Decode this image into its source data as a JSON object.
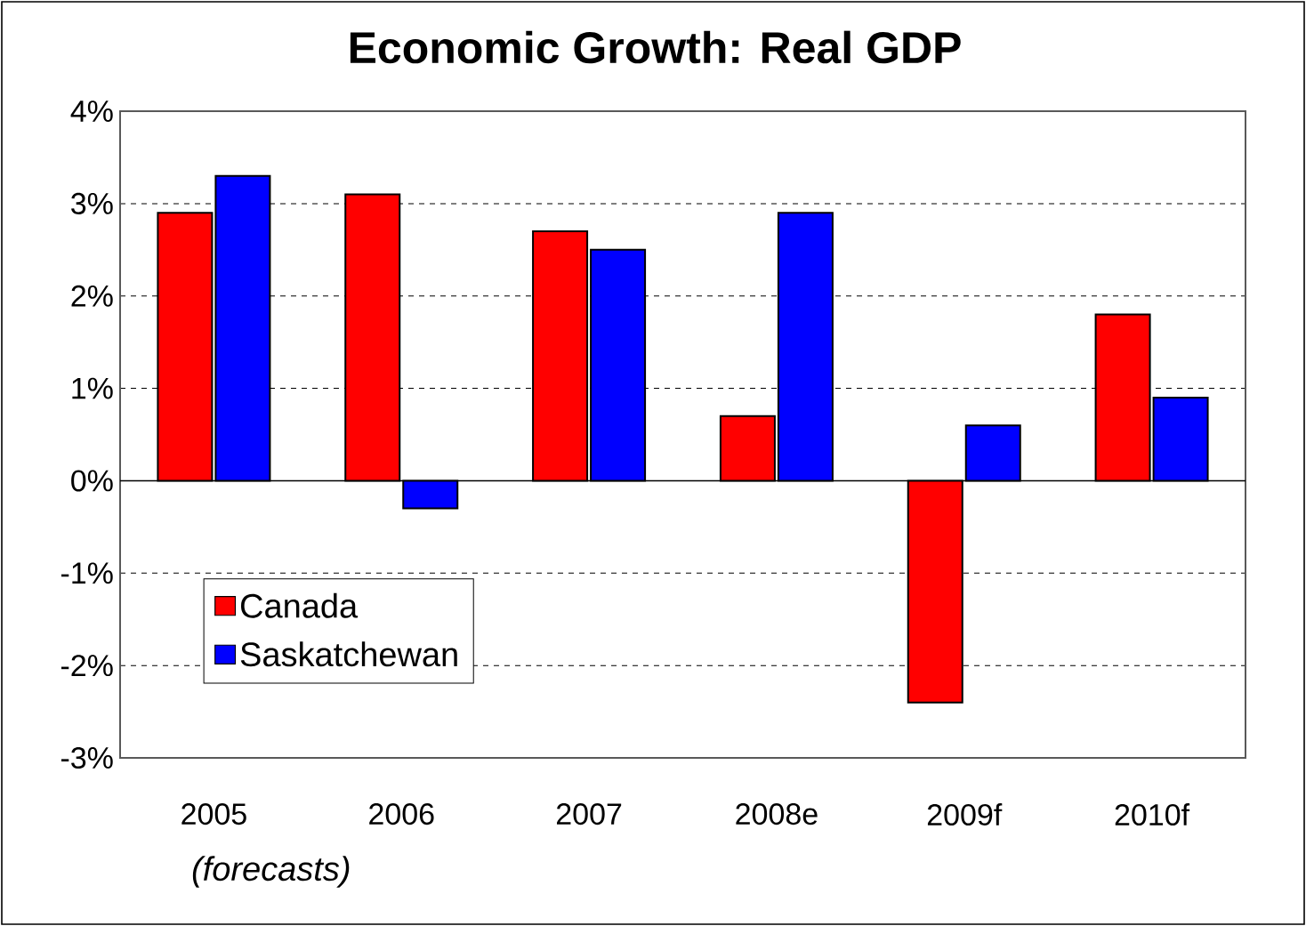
{
  "chart_data": {
    "type": "bar",
    "title": "Economic Growth: Real GDP",
    "categories": [
      "2005",
      "2006",
      "2007",
      "2008e",
      "2009f",
      "2010f"
    ],
    "series": [
      {
        "name": "Canada",
        "color": "#ff0000",
        "values": [
          2.9,
          3.1,
          2.7,
          0.7,
          -2.4,
          1.8
        ]
      },
      {
        "name": "Saskatchewan",
        "color": "#0000ff",
        "values": [
          3.3,
          -0.3,
          2.5,
          2.9,
          0.6,
          0.9
        ]
      }
    ],
    "ylim": [
      -3,
      4
    ],
    "yticks": [
      {
        "value": -3,
        "label": "-3%"
      },
      {
        "value": -2,
        "label": "-2%"
      },
      {
        "value": -1,
        "label": "-1%"
      },
      {
        "value": 0,
        "label": "0%"
      },
      {
        "value": 1,
        "label": "1%"
      },
      {
        "value": 2,
        "label": "2%"
      },
      {
        "value": 3,
        "label": "3%"
      },
      {
        "value": 4,
        "label": "4%"
      }
    ],
    "grid": "y",
    "legend": "bottom left",
    "annotations": [
      "*(forecasts)*"
    ]
  }
}
